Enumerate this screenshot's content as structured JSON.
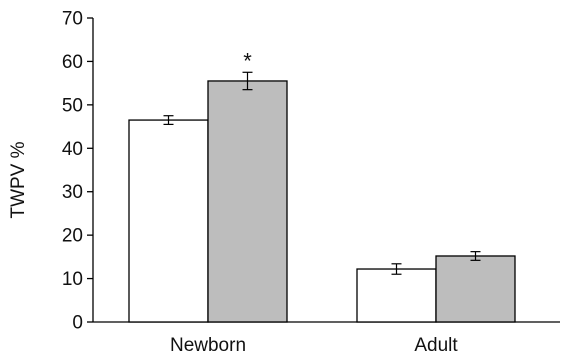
{
  "chart_data": {
    "type": "bar",
    "title": "",
    "xlabel": "",
    "ylabel": "TWPV %",
    "ylim": [
      0,
      70
    ],
    "yticks": [
      0,
      10,
      20,
      30,
      40,
      50,
      60,
      70
    ],
    "grid": false,
    "categories": [
      "Newborn",
      "Adult"
    ],
    "series": [
      {
        "values": [
          46.5,
          12.2
        ],
        "errors": [
          1.0,
          1.2
        ],
        "color": "#ffffff"
      },
      {
        "values": [
          55.5,
          15.2
        ],
        "errors": [
          2.0,
          1.0
        ],
        "color": "#bdbdbd"
      }
    ],
    "annotations": [
      {
        "category": "Newborn",
        "series": 1,
        "text": "*"
      }
    ]
  }
}
